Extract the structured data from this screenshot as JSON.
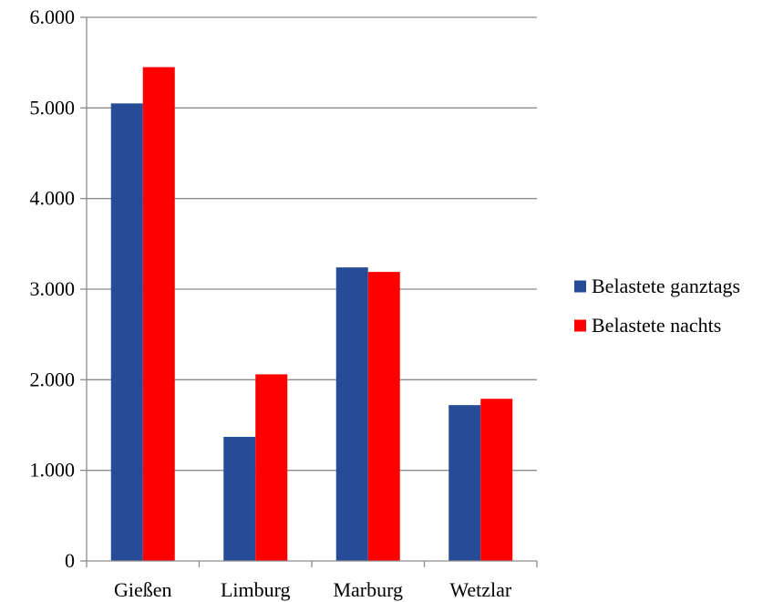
{
  "chart_data": {
    "type": "bar",
    "categories": [
      "Gießen",
      "Limburg",
      "Marburg",
      "Wetzlar"
    ],
    "series": [
      {
        "name": "Belastete ganztags",
        "color": "#264B97",
        "values": [
          5050,
          1370,
          3240,
          1720
        ]
      },
      {
        "name": "Belastete nachts",
        "color": "#FF0000",
        "values": [
          5450,
          2060,
          3190,
          1790
        ]
      }
    ],
    "y_ticks": [
      "0",
      "1.000",
      "2.000",
      "3.000",
      "4.000",
      "5.000",
      "6.000"
    ],
    "ylim": [
      0,
      6000
    ],
    "grid": true,
    "legend_position": "right"
  }
}
